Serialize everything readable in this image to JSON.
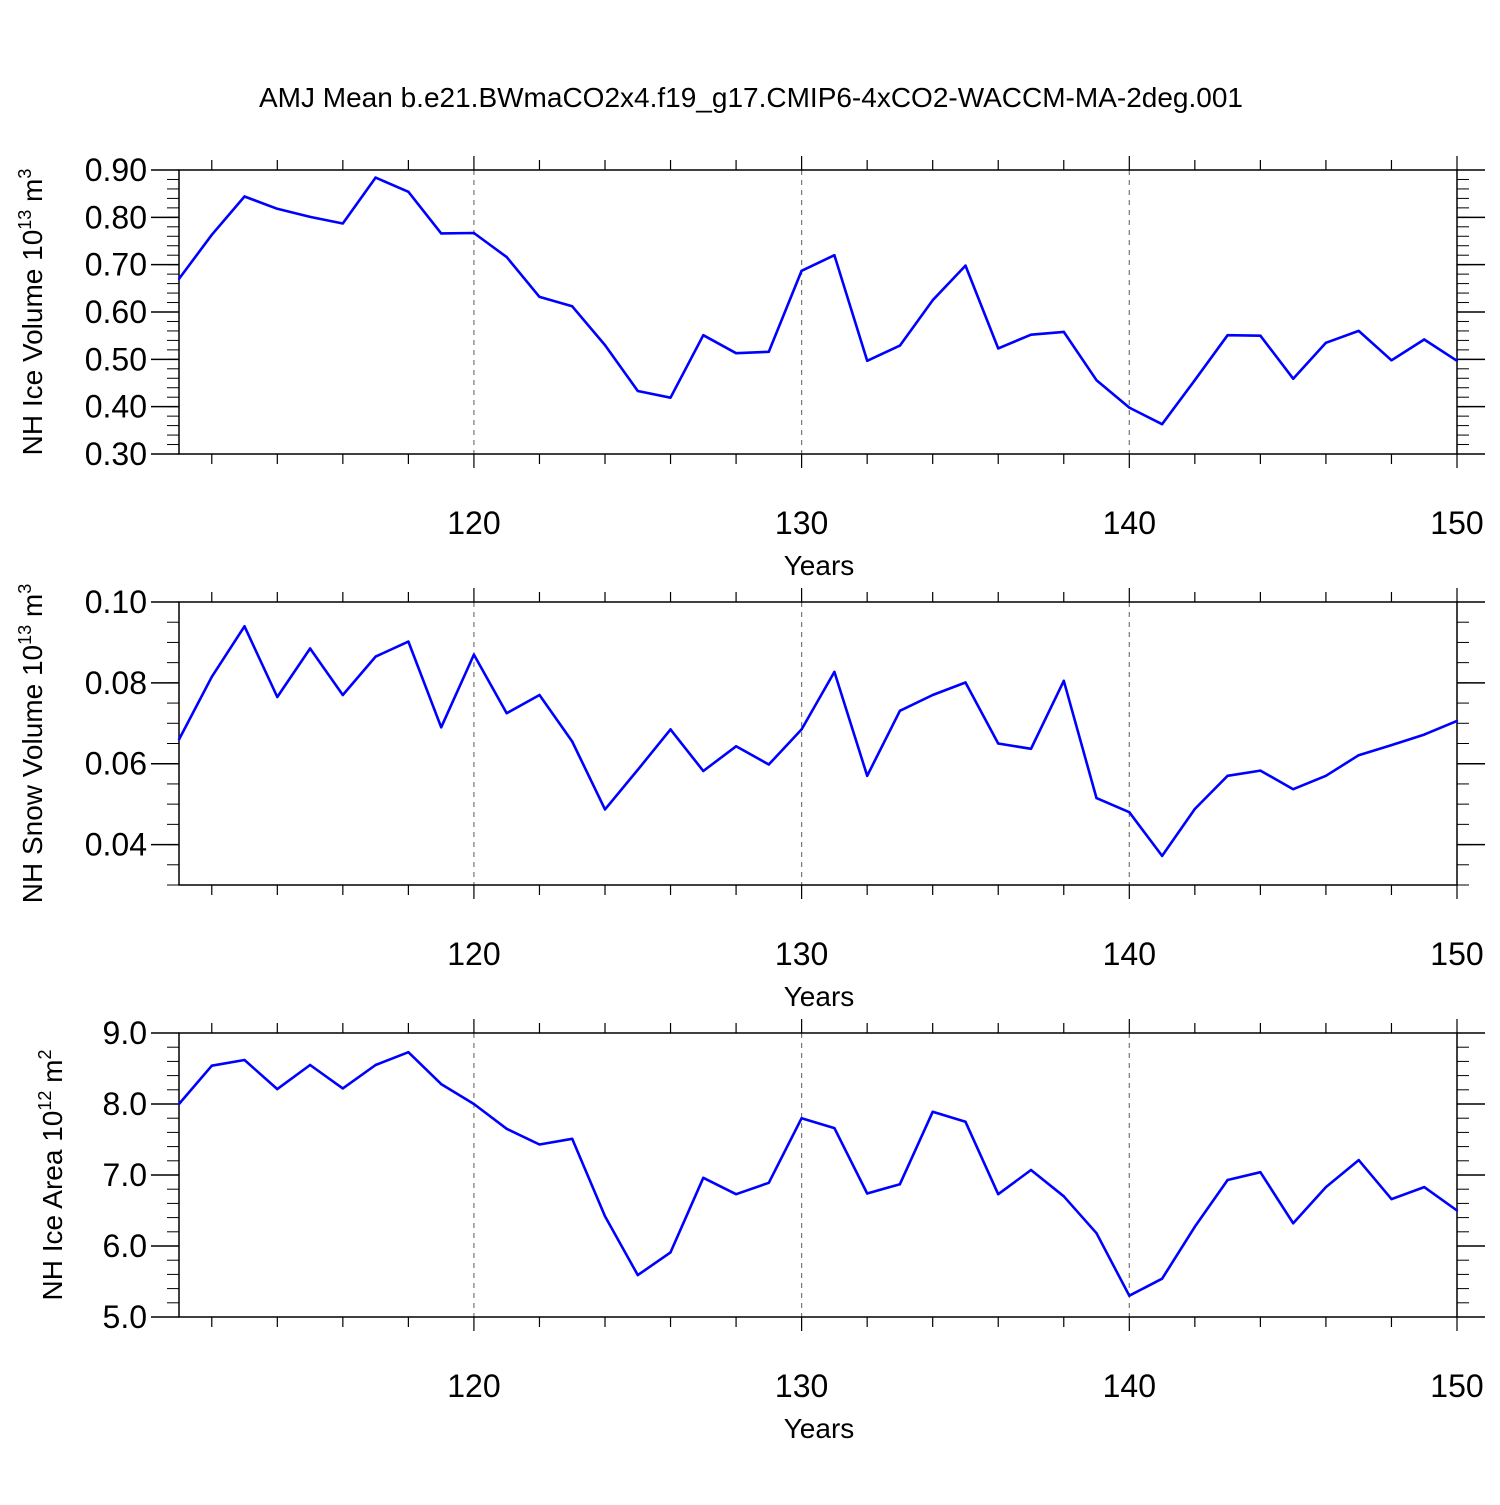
{
  "title": "AMJ Mean b.e21.BWmaCO2x4.f19_g17.CMIP6-4xCO2-WACCM-MA-2deg.001",
  "line_color": "#0000ff",
  "chart_data": [
    {
      "type": "line",
      "name": "nh-ice-volume",
      "title": "AMJ Mean b.e21.BWmaCO2x4.f19_g17.CMIP6-4xCO2-WACCM-MA-2deg.001",
      "xlabel": "Years",
      "ylabel": {
        "main": "NH Ice Volume 10",
        "sup": "13",
        "unit": " m",
        "unit_sup": "3"
      },
      "xlim": [
        111,
        150
      ],
      "ylim": [
        0.3,
        0.9
      ],
      "x_ticks": [
        120,
        130,
        140,
        150
      ],
      "x_tick_labels": [
        "120",
        "130",
        "140",
        "150"
      ],
      "y_ticks": [
        0.3,
        0.4,
        0.5,
        0.6,
        0.7,
        0.8,
        0.9
      ],
      "y_tick_labels": [
        "0.30",
        "0.40",
        "0.50",
        "0.60",
        "0.70",
        "0.80",
        "0.90"
      ],
      "y_minor_step": 0.02,
      "grid": "x-dashed",
      "series": [
        {
          "name": "NH Ice Volume",
          "x": [
            111,
            112,
            113,
            114,
            115,
            116,
            117,
            118,
            119,
            120,
            121,
            122,
            123,
            124,
            125,
            126,
            127,
            128,
            129,
            130,
            131,
            132,
            133,
            134,
            135,
            136,
            137,
            138,
            139,
            140,
            141,
            142,
            143,
            144,
            145,
            146,
            147,
            148,
            149,
            150
          ],
          "values": [
            0.67,
            0.763,
            0.844,
            0.818,
            0.801,
            0.787,
            0.884,
            0.854,
            0.766,
            0.767,
            0.716,
            0.632,
            0.612,
            0.53,
            0.433,
            0.419,
            0.551,
            0.513,
            0.516,
            0.687,
            0.72,
            0.497,
            0.529,
            0.625,
            0.698,
            0.523,
            0.552,
            0.558,
            0.456,
            0.398,
            0.363,
            0.456,
            0.551,
            0.55,
            0.459,
            0.535,
            0.56,
            0.498,
            0.542,
            0.497
          ]
        }
      ]
    },
    {
      "type": "line",
      "name": "nh-snow-volume",
      "xlabel": "Years",
      "ylabel": {
        "main": "NH Snow Volume 10",
        "sup": "13",
        "unit": " m",
        "unit_sup": "3"
      },
      "xlim": [
        111,
        150
      ],
      "ylim": [
        0.03,
        0.1
      ],
      "x_ticks": [
        120,
        130,
        140,
        150
      ],
      "x_tick_labels": [
        "120",
        "130",
        "140",
        "150"
      ],
      "y_ticks": [
        0.04,
        0.06,
        0.08,
        0.1
      ],
      "y_tick_labels": [
        "0.04",
        "0.06",
        "0.08",
        "0.10"
      ],
      "y_minor_step": 0.005,
      "grid": "x-dashed",
      "series": [
        {
          "name": "NH Snow Volume",
          "x": [
            111,
            112,
            113,
            114,
            115,
            116,
            117,
            118,
            119,
            120,
            121,
            122,
            123,
            124,
            125,
            126,
            127,
            128,
            129,
            130,
            131,
            132,
            133,
            134,
            135,
            136,
            137,
            138,
            139,
            140,
            141,
            142,
            143,
            144,
            145,
            146,
            147,
            148,
            149,
            150
          ],
          "values": [
            0.066,
            0.0815,
            0.094,
            0.0765,
            0.0885,
            0.077,
            0.0865,
            0.0902,
            0.069,
            0.087,
            0.0725,
            0.077,
            0.0655,
            0.0487,
            0.0585,
            0.0685,
            0.0582,
            0.0643,
            0.0598,
            0.0685,
            0.0827,
            0.057,
            0.0731,
            0.077,
            0.0801,
            0.065,
            0.0637,
            0.0805,
            0.0515,
            0.048,
            0.0372,
            0.0488,
            0.057,
            0.0583,
            0.0537,
            0.057,
            0.0621,
            0.0646,
            0.0672,
            0.0706
          ]
        }
      ]
    },
    {
      "type": "line",
      "name": "nh-ice-area",
      "xlabel": "Years",
      "ylabel": {
        "main": "NH Ice Area 10",
        "sup": "12",
        "unit": " m",
        "unit_sup": "2"
      },
      "xlim": [
        111,
        150
      ],
      "ylim": [
        5.0,
        9.0
      ],
      "x_ticks": [
        120,
        130,
        140,
        150
      ],
      "x_tick_labels": [
        "120",
        "130",
        "140",
        "150"
      ],
      "y_ticks": [
        5.0,
        6.0,
        7.0,
        8.0,
        9.0
      ],
      "y_tick_labels": [
        "5.0",
        "6.0",
        "7.0",
        "8.0",
        "9.0"
      ],
      "y_minor_step": 0.2,
      "grid": "x-dashed",
      "series": [
        {
          "name": "NH Ice Area",
          "x": [
            111,
            112,
            113,
            114,
            115,
            116,
            117,
            118,
            119,
            120,
            121,
            122,
            123,
            124,
            125,
            126,
            127,
            128,
            129,
            130,
            131,
            132,
            133,
            134,
            135,
            136,
            137,
            138,
            139,
            140,
            141,
            142,
            143,
            144,
            145,
            146,
            147,
            148,
            149,
            150
          ],
          "values": [
            8.0,
            8.54,
            8.62,
            8.21,
            8.55,
            8.22,
            8.55,
            8.73,
            8.28,
            8.0,
            7.65,
            7.43,
            7.51,
            6.42,
            5.59,
            5.91,
            6.96,
            6.73,
            6.89,
            7.8,
            7.66,
            6.74,
            6.87,
            7.89,
            7.75,
            6.73,
            7.07,
            6.7,
            6.18,
            5.3,
            5.54,
            6.27,
            6.93,
            7.04,
            6.32,
            6.83,
            7.21,
            6.66,
            6.83,
            6.5
          ]
        }
      ]
    }
  ]
}
